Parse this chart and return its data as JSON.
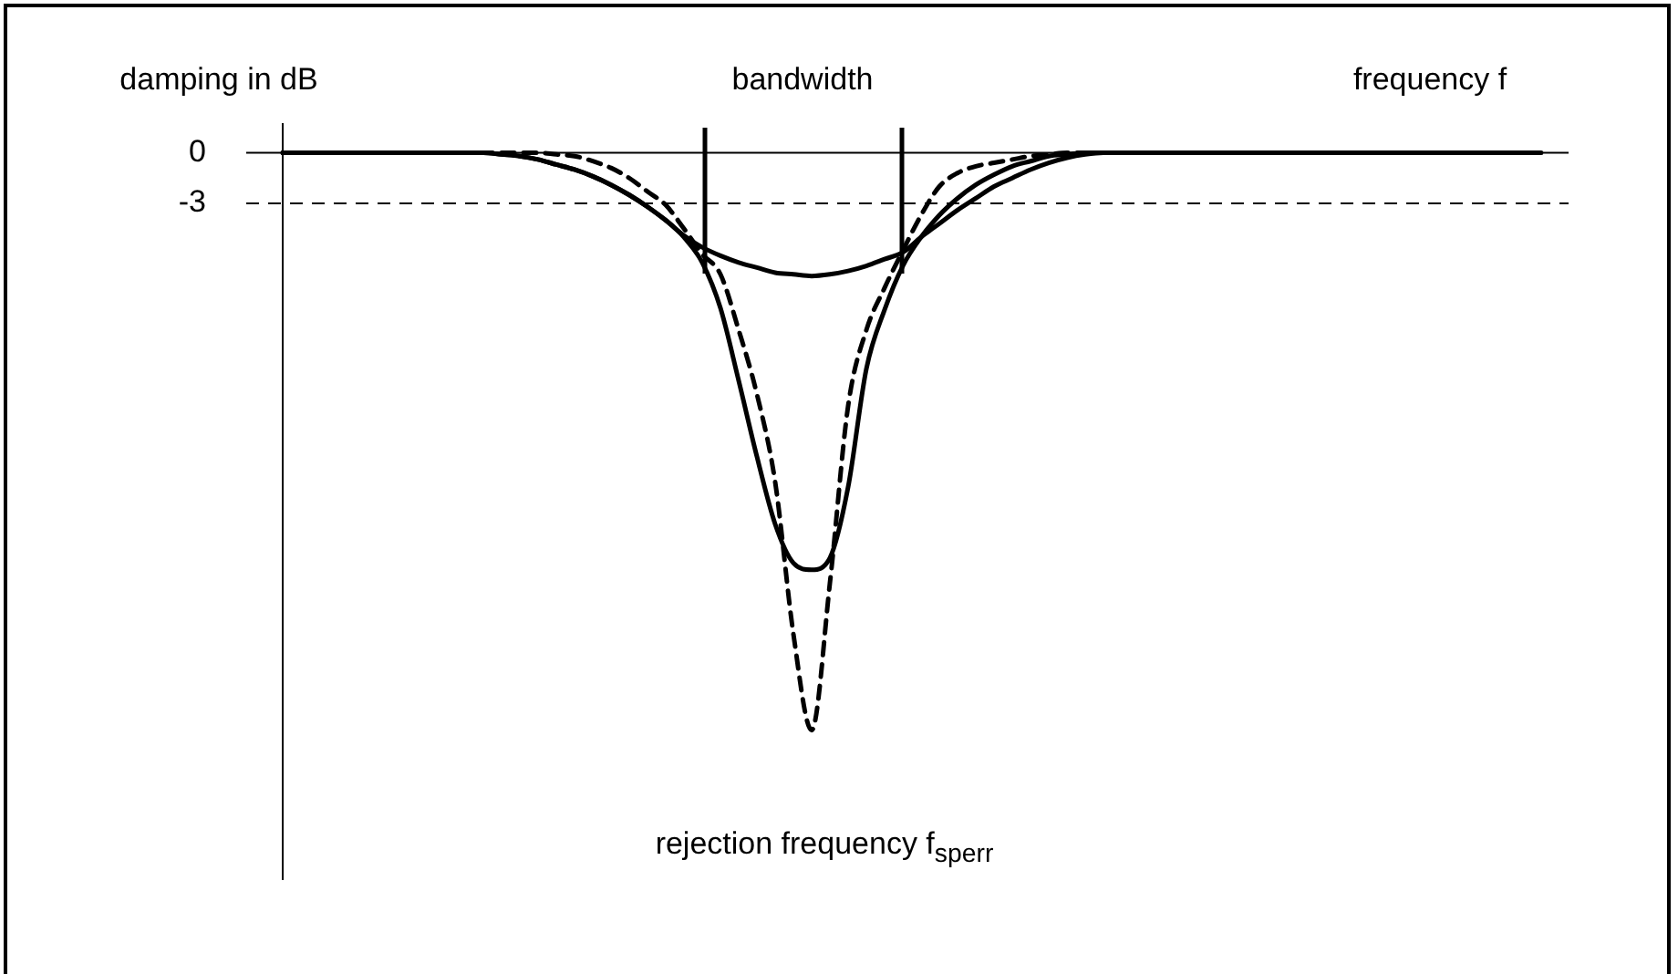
{
  "chart_data": {
    "type": "line",
    "ylabel": "damping in dB",
    "xlabel": "frequency f",
    "annotations": [
      "bandwidth",
      "rejection frequency f$_{sperr}$"
    ],
    "categories": [
      null,
      null,
      null,
      null,
      null,
      null,
      null,
      null,
      null,
      null,
      null,
      null,
      null,
      null,
      null,
      null,
      null,
      null,
      null,
      null,
      null,
      null,
      null,
      null,
      null,
      null,
      null,
      null,
      null,
      null,
      null,
      null,
      null,
      null,
      null,
      null,
      null,
      null,
      null,
      null,
      null,
      null,
      null,
      null,
      null,
      null,
      null,
      null,
      null,
      null,
      null,
      null,
      null,
      null,
      null,
      null,
      null,
      null,
      null,
      null,
      null,
      null,
      null,
      null,
      null,
      null,
      null,
      null,
      null,
      null
    ],
    "series": [
      {
        "color": "#000000",
        "line_style": "solid",
        "values": [
          0,
          0,
          0,
          0,
          0,
          0,
          0,
          0,
          0,
          0,
          0,
          0,
          -0.1,
          -0.2,
          -0.4,
          -0.7,
          -1.0,
          -1.4,
          -1.9,
          -2.5,
          -3.2,
          -4.0,
          -4.9,
          -5.6,
          -6.1,
          -6.5,
          -6.8,
          -7.1,
          -7.2,
          -7.3,
          -7.2,
          -7.0,
          -6.7,
          -6.3,
          -5.9,
          -5.0,
          -4.2,
          -3.4,
          -2.7,
          -2.0,
          -1.5,
          -1.0,
          -0.6,
          -0.3,
          -0.1,
          0,
          0,
          0,
          0,
          0,
          0,
          0,
          0,
          0,
          0,
          0,
          0,
          0,
          0,
          0,
          0,
          0,
          0,
          0,
          0,
          0,
          0,
          0,
          0,
          0
        ]
      },
      {
        "color": "#000000",
        "line_style": "solid",
        "values": [
          0,
          0,
          0,
          0,
          0,
          0,
          0,
          0,
          0,
          0,
          0,
          0,
          -0.1,
          -0.2,
          -0.4,
          -0.7,
          -1.0,
          -1.4,
          -1.9,
          -2.5,
          -3.2,
          -4.0,
          -5.0,
          -6.5,
          -9.2,
          -13.5,
          -18.0,
          -22.0,
          -24.3,
          -24.7,
          -24.0,
          -19.8,
          -12.8,
          -9.3,
          -6.7,
          -5.0,
          -3.7,
          -2.7,
          -1.9,
          -1.3,
          -0.8,
          -0.5,
          -0.2,
          -0.1,
          0,
          0,
          0,
          0,
          0,
          0,
          0,
          0,
          0,
          0,
          0,
          0,
          0,
          null,
          null,
          null,
          null,
          null,
          null,
          null,
          null,
          null,
          null,
          null,
          null,
          null
        ]
      },
      {
        "color": "#000000",
        "line_style": "dashed",
        "values": [
          0,
          0,
          0,
          0,
          0,
          0,
          0,
          0,
          0,
          0,
          0,
          0,
          0,
          0,
          0,
          -0.1,
          -0.2,
          -0.5,
          -0.9,
          -1.5,
          -2.3,
          -3.1,
          -4.5,
          -6.0,
          -7.2,
          -10.5,
          -14.3,
          -19.5,
          -28.5,
          -34.2,
          -25.5,
          -15.0,
          -10.5,
          -8.0,
          -5.8,
          -3.7,
          -2.0,
          -1.2,
          -0.8,
          -0.6,
          -0.4,
          -0.2,
          -0.1,
          0,
          0,
          0,
          0,
          0,
          null,
          null,
          null,
          null,
          null,
          null,
          null,
          null,
          null,
          null,
          null,
          null,
          null,
          null,
          null,
          null,
          null,
          null,
          null,
          null,
          null,
          null
        ]
      }
    ],
    "ylim": [
      -43,
      1.7
    ],
    "yticks": [
      0,
      -3
    ],
    "ref_lines": [
      {
        "axis": "y",
        "value": 0,
        "line_style": "solid"
      },
      {
        "axis": "y",
        "value": -3,
        "line_style": "dashed"
      }
    ],
    "grid": false,
    "legend": false,
    "marker": "none",
    "tick_labels": "y"
  }
}
